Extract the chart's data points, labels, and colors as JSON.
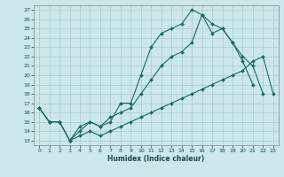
{
  "title": "",
  "xlabel": "Humidex (Indice chaleur)",
  "background_color": "#cce8e8",
  "grid_color": "#b0d0d0",
  "line_color": "#1a6b5a",
  "xlim": [
    -0.5,
    23.5
  ],
  "ylim": [
    12.5,
    27.5
  ],
  "yticks": [
    13,
    14,
    15,
    16,
    17,
    18,
    19,
    20,
    21,
    22,
    23,
    24,
    25,
    26,
    27
  ],
  "xticks": [
    0,
    1,
    2,
    3,
    4,
    5,
    6,
    7,
    8,
    9,
    10,
    11,
    12,
    13,
    14,
    15,
    16,
    17,
    18,
    19,
    20,
    21,
    22,
    23
  ],
  "line1_x": [
    0,
    1,
    2,
    3,
    4,
    5,
    6,
    7,
    8,
    9,
    10,
    11,
    12,
    13,
    14,
    15,
    16,
    17,
    18,
    19,
    20,
    21
  ],
  "line1_y": [
    16.5,
    15.0,
    15.0,
    13.0,
    14.5,
    15.0,
    14.5,
    15.0,
    17.0,
    17.0,
    20.0,
    23.0,
    24.5,
    25.0,
    25.5,
    27.0,
    26.5,
    25.5,
    25.0,
    23.5,
    21.5,
    19.0
  ],
  "line2_x": [
    0,
    1,
    2,
    3,
    4,
    5,
    6,
    7,
    8,
    9,
    10,
    11,
    12,
    13,
    14,
    15,
    16,
    17,
    18,
    19,
    20,
    21,
    22
  ],
  "line2_y": [
    16.5,
    15.0,
    15.0,
    13.0,
    14.0,
    15.0,
    14.5,
    15.5,
    16.0,
    16.5,
    18.0,
    19.5,
    21.0,
    22.0,
    22.5,
    23.5,
    26.5,
    24.5,
    25.0,
    23.5,
    22.0,
    21.0,
    18.0
  ],
  "line3_x": [
    0,
    1,
    2,
    3,
    4,
    5,
    6,
    7,
    8,
    9,
    10,
    11,
    12,
    13,
    14,
    15,
    16,
    17,
    18,
    19,
    20,
    21,
    22,
    23
  ],
  "line3_y": [
    16.5,
    15.0,
    15.0,
    13.0,
    13.5,
    14.0,
    13.5,
    14.0,
    14.5,
    15.0,
    15.5,
    16.0,
    16.5,
    17.0,
    17.5,
    18.0,
    18.5,
    19.0,
    19.5,
    20.0,
    20.5,
    21.5,
    22.0,
    18.0
  ]
}
